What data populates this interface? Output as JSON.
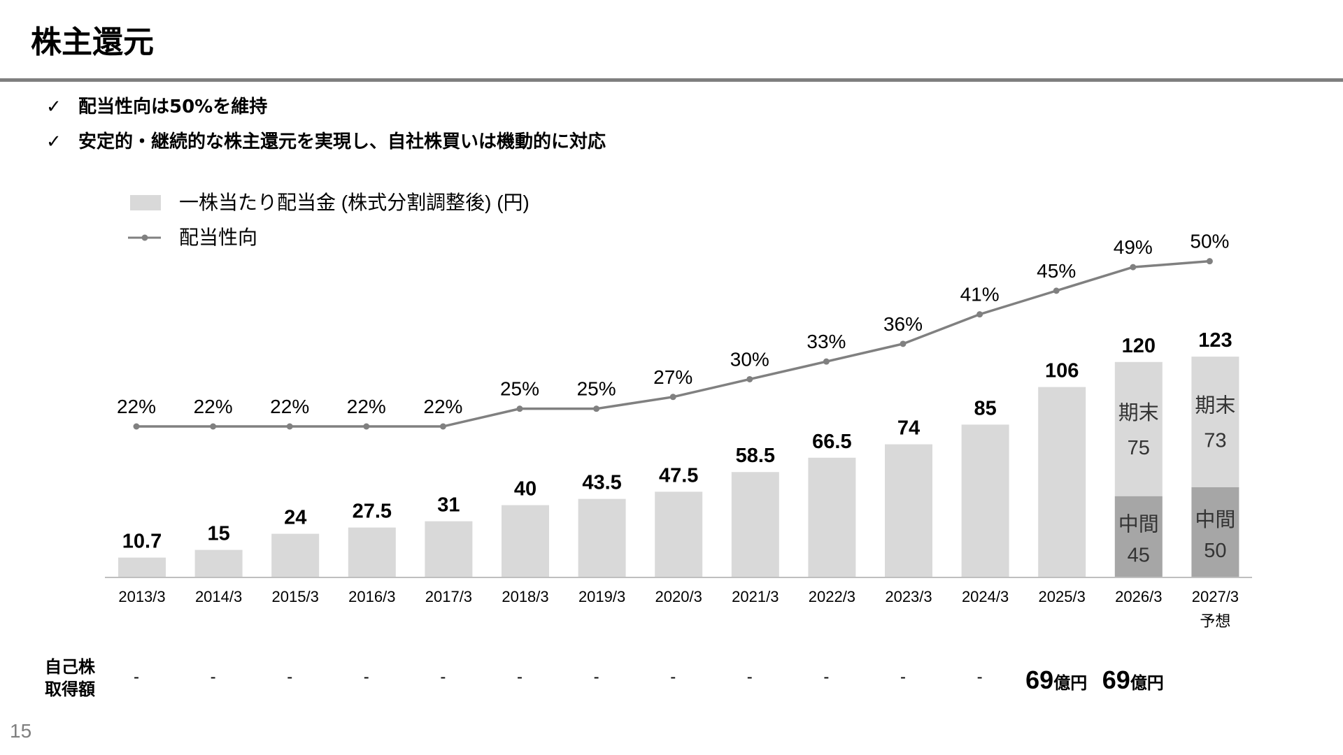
{
  "header": {
    "title": "株主還元",
    "bullets": [
      "配当性向は50%を維持",
      "安定的・継続的な株主還元を実現し、自社株買いは機動的に対応"
    ],
    "check_glyph": "✓"
  },
  "chart_data": {
    "type": "bar",
    "categories": [
      "2013/3",
      "2014/3",
      "2015/3",
      "2016/3",
      "2017/3",
      "2018/3",
      "2019/3",
      "2020/3",
      "2021/3",
      "2022/3",
      "2023/3",
      "2024/3",
      "2025/3",
      "2026/3",
      "2027/3"
    ],
    "category_notes": [
      "",
      "",
      "",
      "",
      "",
      "",
      "",
      "",
      "",
      "",
      "",
      "",
      "",
      "",
      "予想"
    ],
    "legend": {
      "bar": "一株当たり配当金 (株式分割調整後) (円)",
      "line": "配当性向",
      "placement": "top-left"
    },
    "dividend_per_share": {
      "total_labels": [
        "10.7",
        "15",
        "24",
        "27.5",
        "31",
        "40",
        "43.5",
        "47.5",
        "58.5",
        "66.5",
        "74",
        "85",
        "106",
        "120",
        "123"
      ],
      "values": [
        10.7,
        15,
        24,
        27.5,
        31,
        40,
        43.5,
        47.5,
        58.5,
        66.5,
        74,
        85,
        106,
        120,
        123
      ],
      "split": [
        null,
        null,
        null,
        null,
        null,
        null,
        null,
        null,
        null,
        null,
        null,
        null,
        null,
        {
          "interim_label": "中間",
          "interim": 45,
          "interim_text": "45",
          "final_label": "期末",
          "final": 75,
          "final_text": "75"
        },
        {
          "interim_label": "中間",
          "interim": 50,
          "interim_text": "50",
          "final_label": "期末",
          "final": 73,
          "final_text": "73"
        }
      ]
    },
    "payout_ratio": {
      "values": [
        22,
        22,
        22,
        22,
        22,
        25,
        25,
        27,
        30,
        33,
        36,
        41,
        45,
        49,
        50
      ],
      "labels": [
        "22%",
        "22%",
        "22%",
        "22%",
        "22%",
        "25%",
        "25%",
        "27%",
        "30%",
        "33%",
        "36%",
        "41%",
        "45%",
        "49%",
        "50%"
      ]
    },
    "ylim_dividend": [
      0,
      125
    ],
    "grid": false,
    "colors": {
      "bar": "#d9d9d9",
      "interim_bar": "#a6a6a6",
      "line": "#808080",
      "axis": "#bfbfbf"
    }
  },
  "buyback": {
    "label_line1": "自己株",
    "label_line2": "取得額",
    "values": [
      "-",
      "-",
      "-",
      "-",
      "-",
      "-",
      "-",
      "-",
      "-",
      "-",
      "-",
      "-",
      "69",
      "69",
      ""
    ],
    "units": [
      "",
      "",
      "",
      "",
      "",
      "",
      "",
      "",
      "",
      "",
      "",
      "",
      "億円",
      "億円",
      ""
    ]
  },
  "page_number": "15"
}
